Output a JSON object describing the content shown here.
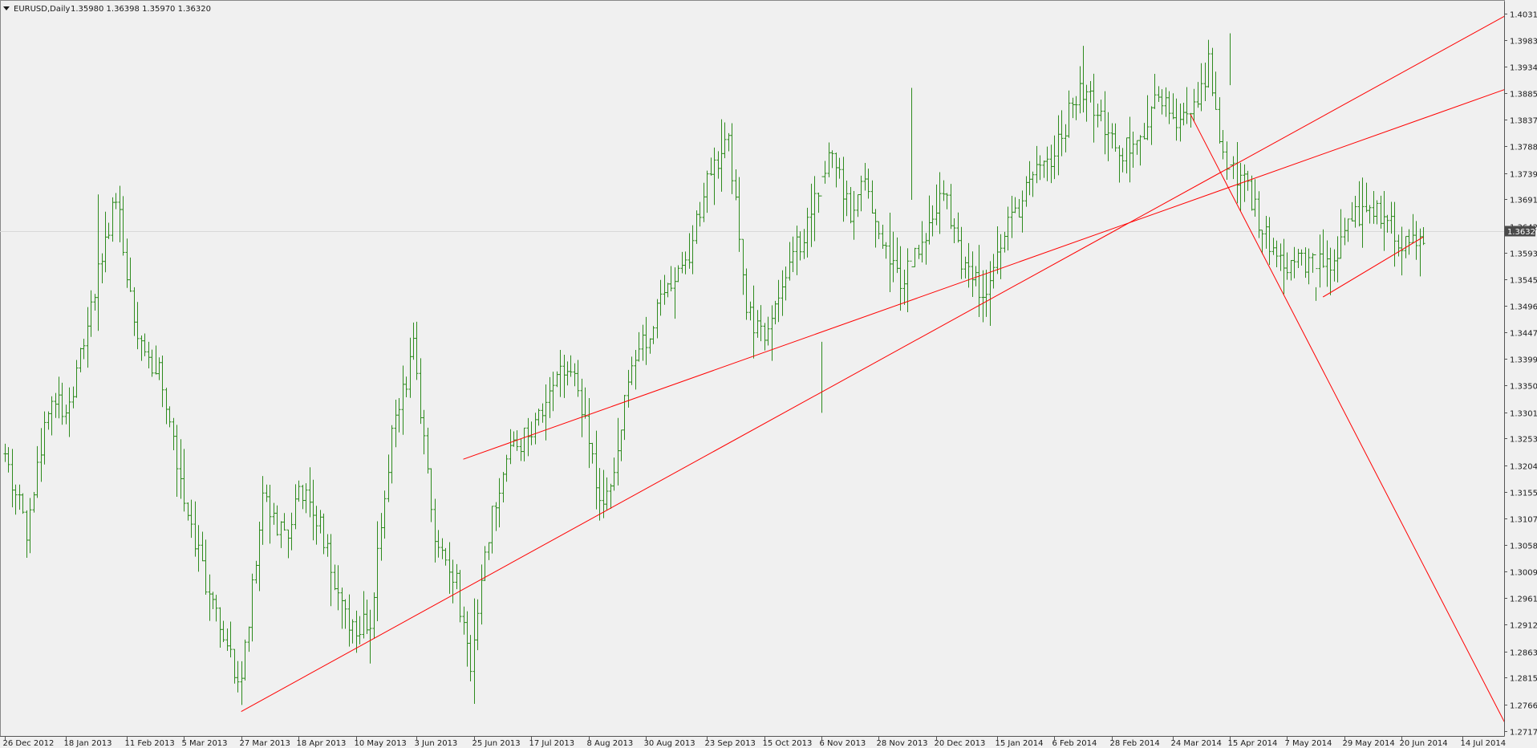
{
  "window": {
    "symbol_label": "EURUSD,Daily",
    "ohlc_label": "1.35980 1.36398 1.35970 1.36320"
  },
  "colors": {
    "background": "#f0f0f0",
    "bar": "#2e8b1e",
    "trendline": "#ff0000",
    "grid": "#e2e2e2",
    "axis": "#555555",
    "price_tag_bg": "#4a4a4a",
    "price_tag_fg": "#ffffff"
  },
  "chart_data": {
    "type": "ohlc-bar",
    "symbol": "EURUSD",
    "timeframe": "Daily",
    "ylim": [
      1.2717,
      1.4031
    ],
    "grid": false,
    "current_price": "1.36320",
    "y_ticks": [
      "1.40310",
      "1.39830",
      "1.39340",
      "1.38850",
      "1.38370",
      "1.37880",
      "1.37390",
      "1.36910",
      "1.36420",
      "1.35930",
      "1.35450",
      "1.34960",
      "1.34470",
      "1.33990",
      "1.33500",
      "1.33010",
      "1.32530",
      "1.32040",
      "1.31550",
      "1.31070",
      "1.30580",
      "1.30090",
      "1.29610",
      "1.29120",
      "1.28630",
      "1.28150",
      "1.27660",
      "1.27170"
    ],
    "x_ticks": [
      "26 Dec 2012",
      "18 Jan 2013",
      "11 Feb 2013",
      "5 Mar 2013",
      "27 Mar 2013",
      "18 Apr 2013",
      "10 May 2013",
      "3 Jun 2013",
      "25 Jun 2013",
      "17 Jul 2013",
      "8 Aug 2013",
      "30 Aug 2013",
      "23 Sep 2013",
      "15 Oct 2013",
      "6 Nov 2013",
      "28 Nov 2013",
      "20 Dec 2013",
      "15 Jan 2014",
      "6 Feb 2014",
      "28 Feb 2014",
      "24 Mar 2014",
      "15 Apr 2014",
      "7 May 2014",
      "29 May 2014",
      "20 Jun 2014",
      "14 Jul 2014"
    ],
    "x_tick_bars": [
      0,
      17,
      34,
      50,
      66,
      82,
      98,
      115,
      131,
      147,
      163,
      179,
      196,
      212,
      228,
      244,
      260,
      277,
      293,
      309,
      326,
      342,
      358,
      374,
      390,
      407
    ],
    "n_bars": 420,
    "anchors": [
      [
        0,
        1.3225
      ],
      [
        6,
        1.3085
      ],
      [
        12,
        1.332
      ],
      [
        18,
        1.331
      ],
      [
        24,
        1.3505
      ],
      [
        31,
        1.37
      ],
      [
        37,
        1.343
      ],
      [
        44,
        1.336
      ],
      [
        50,
        1.3145
      ],
      [
        56,
        1.299
      ],
      [
        62,
        1.286
      ],
      [
        66,
        1.2805
      ],
      [
        72,
        1.315
      ],
      [
        78,
        1.307
      ],
      [
        84,
        1.318
      ],
      [
        90,
        1.304
      ],
      [
        96,
        1.29
      ],
      [
        102,
        1.292
      ],
      [
        108,
        1.325
      ],
      [
        114,
        1.342
      ],
      [
        120,
        1.308
      ],
      [
        126,
        1.299
      ],
      [
        130,
        1.282
      ],
      [
        134,
        1.305
      ],
      [
        140,
        1.323
      ],
      [
        148,
        1.327
      ],
      [
        155,
        1.338
      ],
      [
        160,
        1.335
      ],
      [
        166,
        1.314
      ],
      [
        170,
        1.32
      ],
      [
        175,
        1.34
      ],
      [
        179,
        1.343
      ],
      [
        185,
        1.353
      ],
      [
        190,
        1.357
      ],
      [
        196,
        1.373
      ],
      [
        202,
        1.381
      ],
      [
        207,
        1.348
      ],
      [
        212,
        1.345
      ],
      [
        218,
        1.355
      ],
      [
        224,
        1.365
      ],
      [
        230,
        1.378
      ],
      [
        236,
        1.367
      ],
      [
        240,
        1.375
      ],
      [
        244,
        1.362
      ],
      [
        250,
        1.355
      ],
      [
        256,
        1.36
      ],
      [
        262,
        1.371
      ],
      [
        268,
        1.356
      ],
      [
        274,
        1.352
      ],
      [
        280,
        1.364
      ],
      [
        288,
        1.374
      ],
      [
        294,
        1.379
      ],
      [
        300,
        1.39
      ],
      [
        306,
        1.384
      ],
      [
        312,
        1.378
      ],
      [
        318,
        1.381
      ],
      [
        322,
        1.388
      ],
      [
        328,
        1.383
      ],
      [
        332,
        1.385
      ],
      [
        336,
        1.3935
      ],
      [
        340,
        1.3765
      ],
      [
        346,
        1.372
      ],
      [
        352,
        1.362
      ],
      [
        358,
        1.3575
      ],
      [
        364,
        1.357
      ],
      [
        370,
        1.357
      ],
      [
        376,
        1.365
      ],
      [
        382,
        1.368
      ],
      [
        390,
        1.3615
      ],
      [
        396,
        1.362
      ]
    ],
    "special_bars": [
      {
        "bar": 26,
        "high": 1.37,
        "low": 1.345
      },
      {
        "bar": 66,
        "high": 1.2845,
        "low": 1.2765
      },
      {
        "bar": 131,
        "high": 1.296,
        "low": 1.2767
      },
      {
        "bar": 228,
        "high": 1.343,
        "low": 1.33
      },
      {
        "bar": 253,
        "high": 1.3895,
        "low": 1.369
      },
      {
        "bar": 301,
        "high": 1.3972,
        "low": 1.385
      },
      {
        "bar": 342,
        "high": 1.3995,
        "low": 1.39
      },
      {
        "bar": 366,
        "high": 1.353,
        "low": 1.3505
      }
    ],
    "trendlines": [
      {
        "name": "rising-support-line",
        "from": [
          66,
          1.2753
        ],
        "to": [
          420,
          1.4031
        ]
      },
      {
        "name": "falling-line",
        "from": [
          331,
          1.3847
        ],
        "to": [
          420,
          1.2717
        ]
      },
      {
        "name": "short-support-line",
        "from": [
          368,
          1.3512
        ],
        "to": [
          396,
          1.3622
        ]
      },
      {
        "name": "upper-extended-line",
        "from": [
          128,
          1.3215
        ],
        "to": [
          420,
          1.3895
        ]
      }
    ]
  }
}
